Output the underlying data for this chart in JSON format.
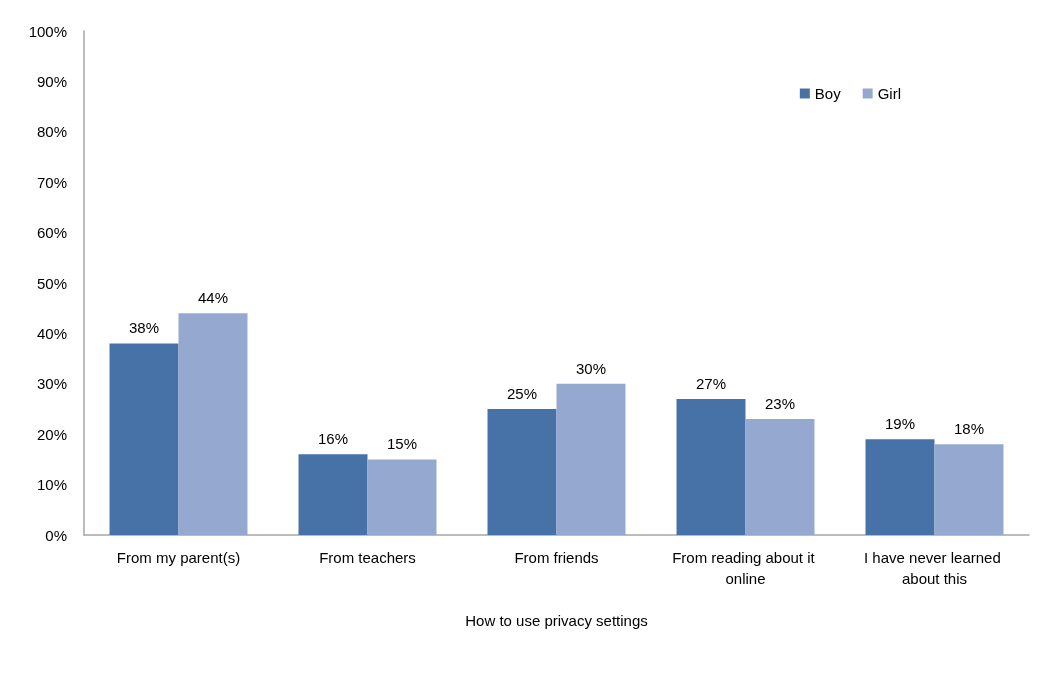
{
  "chart_data": {
    "type": "bar",
    "categories": [
      "From my parent(s)",
      "From teachers",
      "From friends",
      "From reading about it online",
      "I have never learned about this"
    ],
    "series": [
      {
        "name": "Boy",
        "color": "#4672a8",
        "values": [
          38,
          16,
          25,
          27,
          19
        ],
        "value_labels": [
          "38%",
          "16%",
          "25%",
          "27%",
          "19%"
        ]
      },
      {
        "name": "Girl",
        "color": "#95a9d0",
        "values": [
          44,
          15,
          30,
          23,
          18
        ],
        "value_labels": [
          "44%",
          "15%",
          "30%",
          "23%",
          "18%"
        ]
      }
    ],
    "xlabel": "How to use privacy settings",
    "ylim": [
      0,
      100
    ],
    "yticks": [
      {
        "value": 0,
        "label": "0%"
      },
      {
        "value": 10,
        "label": "10%"
      },
      {
        "value": 20,
        "label": "20%"
      },
      {
        "value": 30,
        "label": "30%"
      },
      {
        "value": 40,
        "label": "40%"
      },
      {
        "value": 50,
        "label": "50%"
      },
      {
        "value": 60,
        "label": "60%"
      },
      {
        "value": 70,
        "label": "70%"
      },
      {
        "value": 80,
        "label": "80%"
      },
      {
        "value": 90,
        "label": "90%"
      },
      {
        "value": 100,
        "label": "100%"
      }
    ],
    "grid": false,
    "legend": "top right"
  }
}
